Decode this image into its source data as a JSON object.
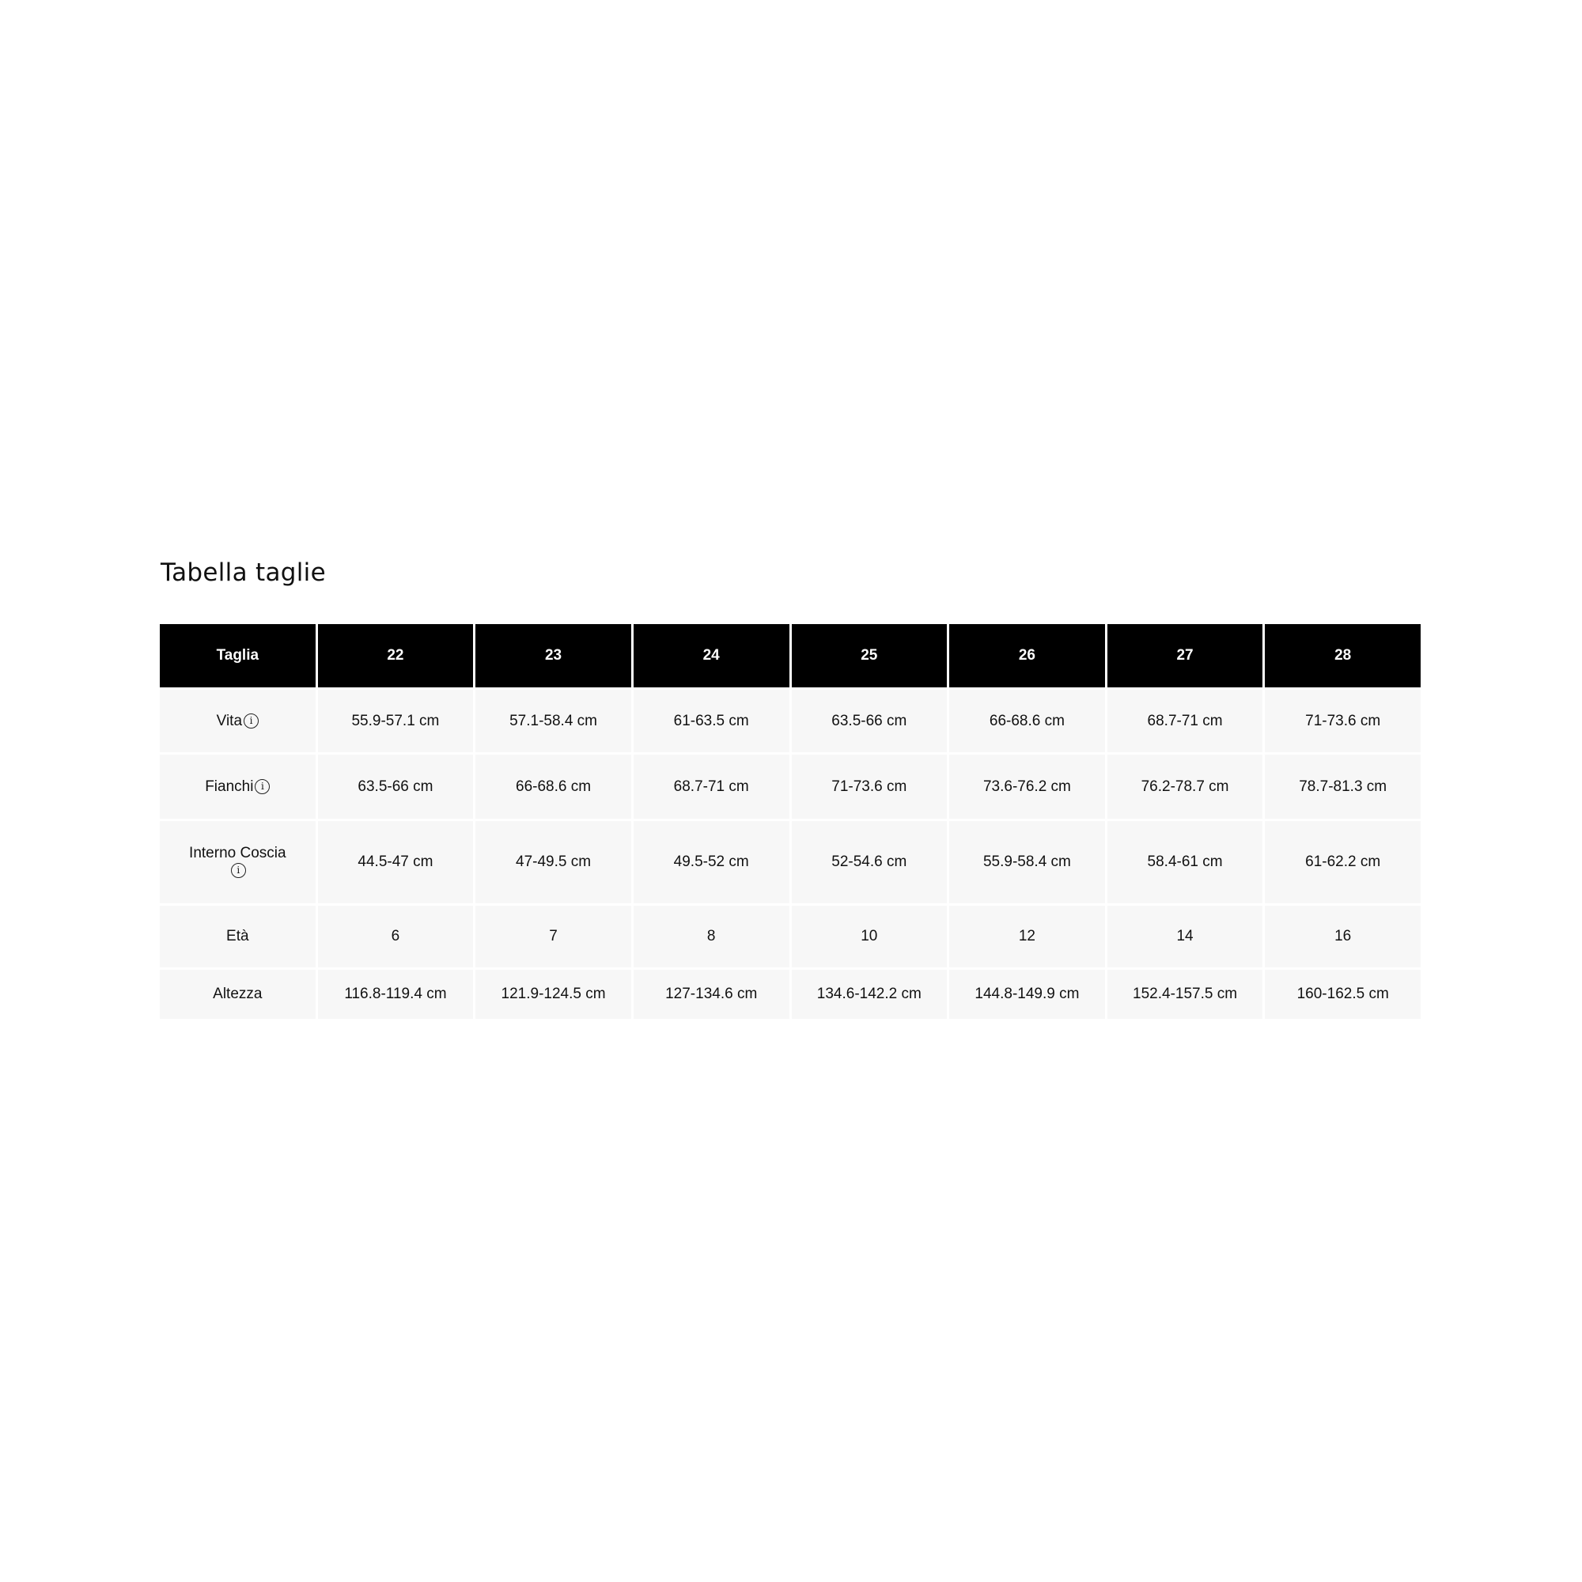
{
  "title": "Tabella taglie",
  "table": {
    "header": [
      "Taglia",
      "22",
      "23",
      "24",
      "25",
      "26",
      "27",
      "28"
    ],
    "rows": [
      {
        "label": "Vita",
        "info": true,
        "values": [
          "55.9-57.1 cm",
          "57.1-58.4 cm",
          "61-63.5 cm",
          "63.5-66 cm",
          "66-68.6 cm",
          "68.7-71 cm",
          "71-73.6 cm"
        ]
      },
      {
        "label": "Fianchi",
        "info": true,
        "values": [
          "63.5-66 cm",
          "66-68.6 cm",
          "68.7-71 cm",
          "71-73.6 cm",
          "73.6-76.2 cm",
          "76.2-78.7 cm",
          "78.7-81.3 cm"
        ]
      },
      {
        "label": "Interno Coscia",
        "info": true,
        "values": [
          "44.5-47 cm",
          "47-49.5 cm",
          "49.5-52 cm",
          "52-54.6 cm",
          "55.9-58.4 cm",
          "58.4-61 cm",
          "61-62.2 cm"
        ]
      },
      {
        "label": "Età",
        "info": false,
        "values": [
          "6",
          "7",
          "8",
          "10",
          "12",
          "14",
          "16"
        ]
      },
      {
        "label": "Altezza",
        "info": false,
        "values": [
          "116.8-119.4 cm",
          "121.9-124.5 cm",
          "127-134.6 cm",
          "134.6-142.2 cm",
          "144.8-149.9 cm",
          "152.4-157.5 cm",
          "160-162.5 cm"
        ]
      }
    ]
  },
  "icons": {
    "info": "info-circle-icon"
  },
  "colors": {
    "header_bg": "#000000",
    "header_text": "#ffffff",
    "cell_bg": "#f7f7f7"
  }
}
